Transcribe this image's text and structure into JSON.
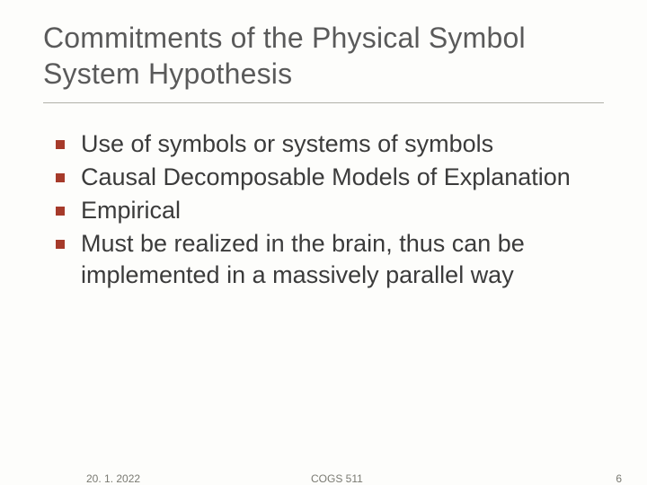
{
  "slide": {
    "title": "Commitments of the Physical Symbol System Hypothesis",
    "bullets": [
      "Use of symbols or systems of symbols",
      "Causal Decomposable Models of Explanation",
      "Empirical",
      "Must be realized in the brain, thus can be implemented in a massively parallel way"
    ],
    "footer": {
      "date": "20. 1. 2022",
      "course": "COGS 511",
      "page": "6"
    },
    "colors": {
      "title_color": "#5a5a5a",
      "bullet_color": "#a63a2a",
      "text_color": "#3b3b3b",
      "footer_color": "#7a7a72",
      "divider_color": "#b0b0a8",
      "background": "#fdfdfb"
    },
    "typography": {
      "title_fontsize": 32,
      "body_fontsize": 27,
      "footer_fontsize": 12,
      "font_family": "Verdana"
    }
  }
}
